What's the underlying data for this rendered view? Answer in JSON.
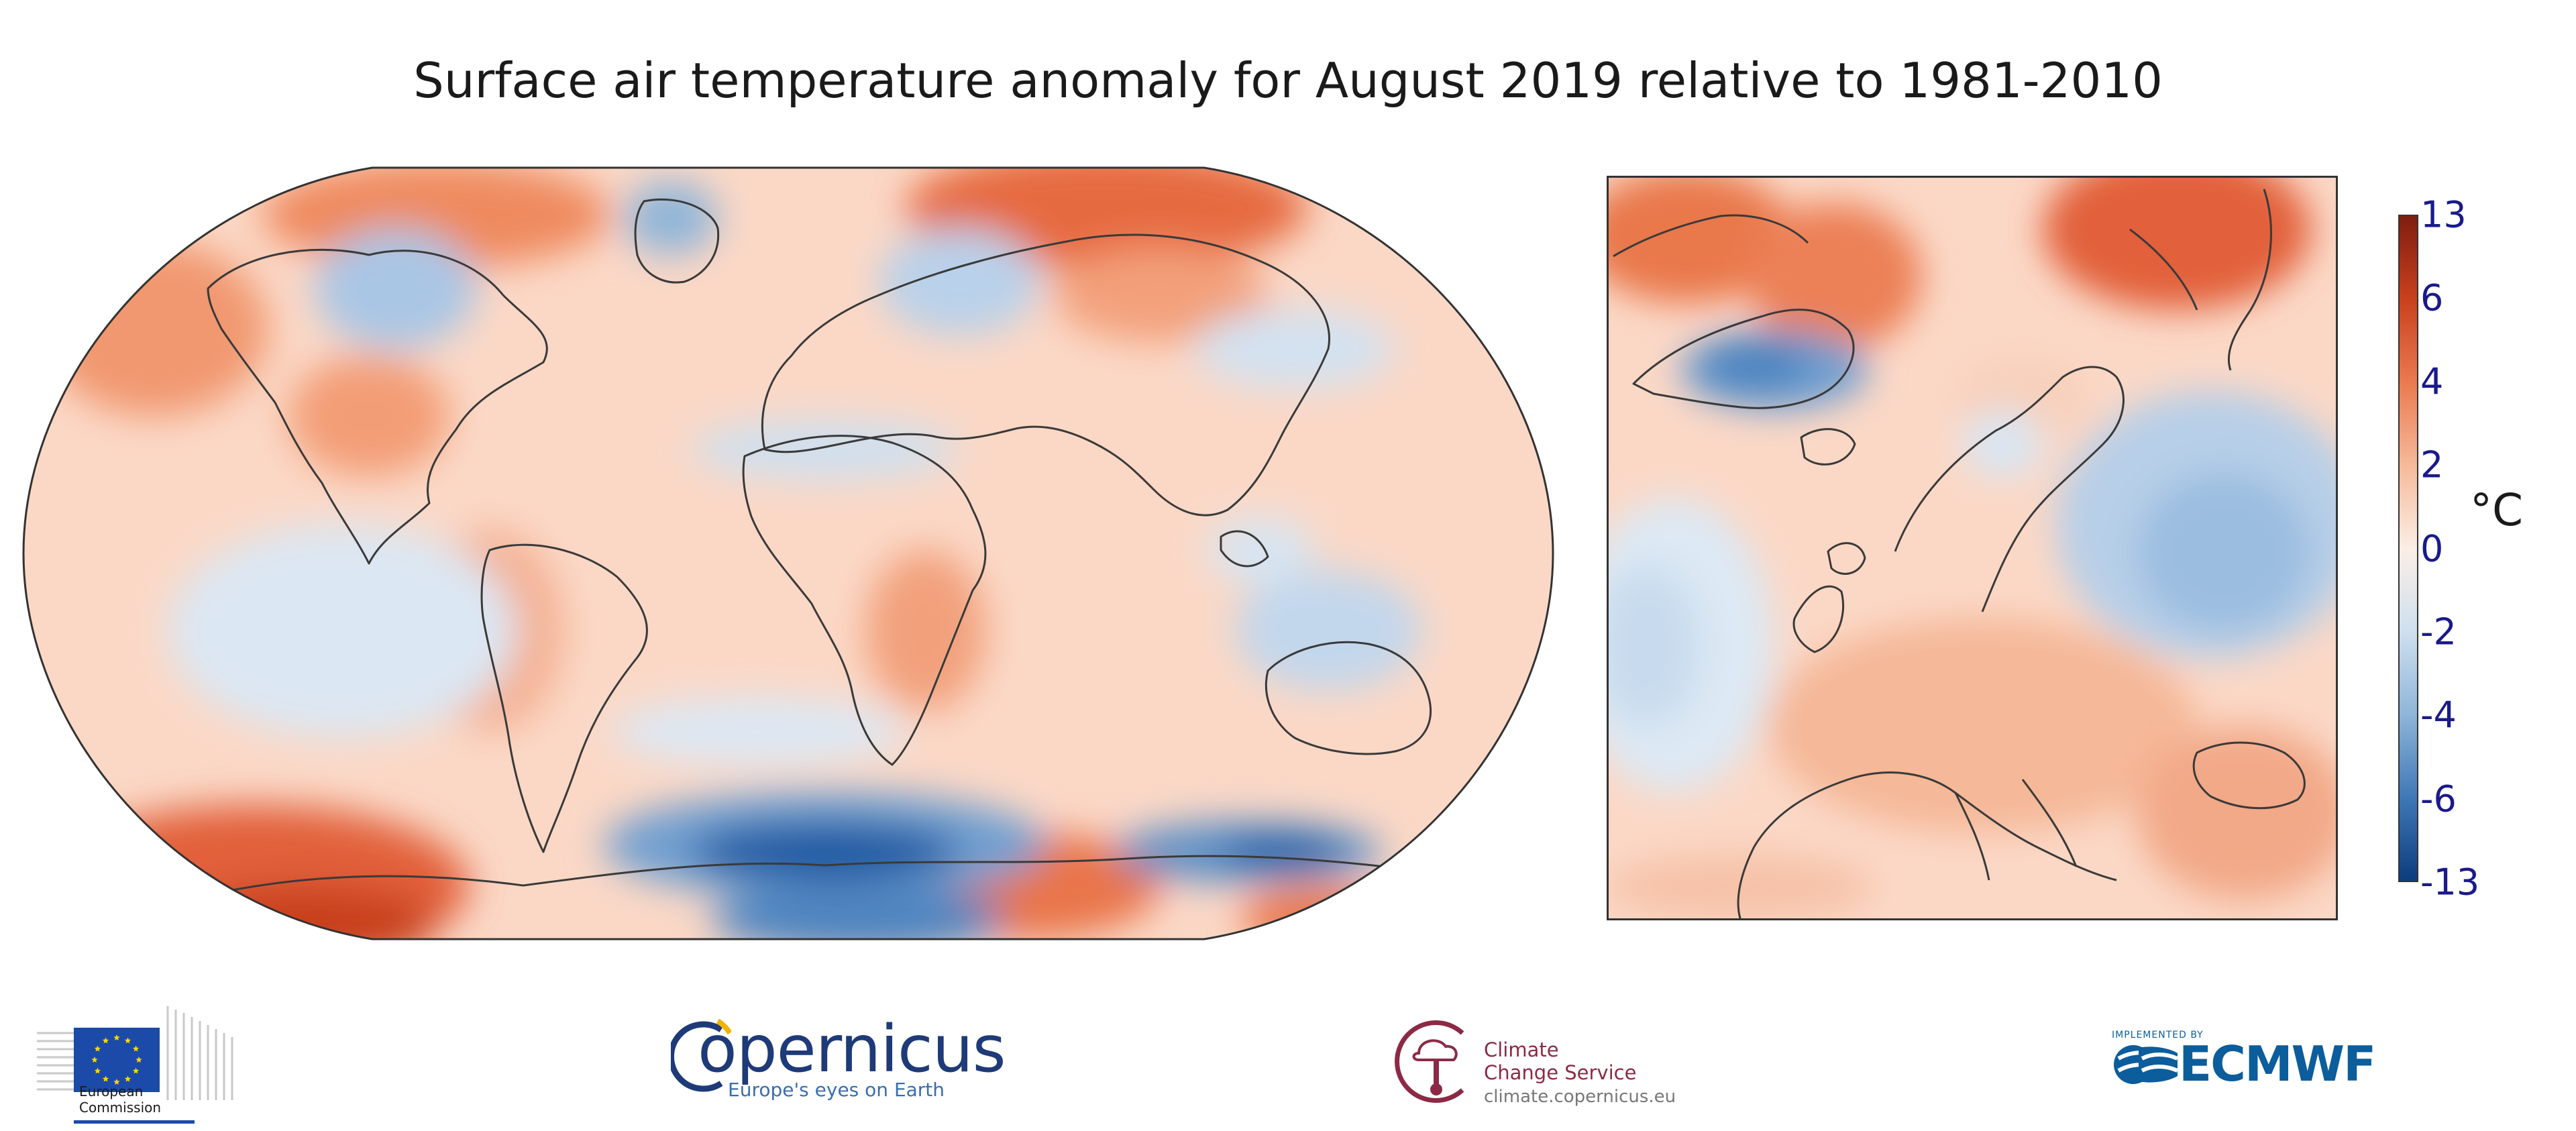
{
  "title": "Surface air temperature anomaly for August 2019 relative to 1981-2010",
  "colorbar": {
    "unit": "°C",
    "ticks": [
      "13",
      "6",
      "4",
      "2",
      "0",
      "-2",
      "-4",
      "-6",
      "-13"
    ],
    "colors": [
      "#7f1d0f",
      "#c8411d",
      "#ea7a4f",
      "#f6b99a",
      "#fbeee6",
      "#cfe0ef",
      "#8fb5d9",
      "#3f78b6",
      "#0c3c7e"
    ]
  },
  "palette": {
    "warm_background": "#fbd6c2",
    "strong_warm": "#e2613a",
    "cool": "#c9dcee",
    "strong_cool": "#1d5aa3",
    "coastline": "#3a3a3a"
  },
  "maps": [
    {
      "name": "global",
      "projection": "Robinson"
    },
    {
      "name": "europe",
      "projection": "regional"
    }
  ],
  "logos": {
    "european_commission": {
      "line1": "European",
      "line2": "Commission",
      "flag_color": "#1b4aa8",
      "star_color": "#ffd800"
    },
    "copernicus": {
      "word": "opernicus",
      "tagline": "Europe's eyes on Earth",
      "accent": "#f0b400"
    },
    "c3s": {
      "line1": "Climate",
      "line2": "Change Service",
      "url": "climate.copernicus.eu"
    },
    "ecmwf": {
      "implemented_by": "IMPLEMENTED BY",
      "word": "ECMWF"
    }
  }
}
